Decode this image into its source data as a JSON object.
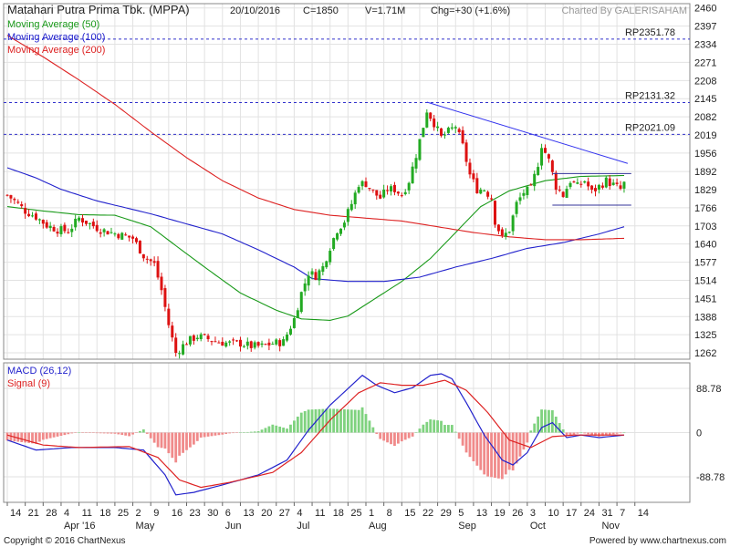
{
  "header": {
    "stock_name": "Matahari Putra Prima Tbk. (MPPA)",
    "date": "20/10/2016",
    "close": "C=1850",
    "volume": "V=1.71M",
    "change": "Chg=+30 (+1.6%)",
    "charted_by": "Charted By GALERISAHAM"
  },
  "footer": {
    "copyright": "Copyright © 2016 ChartNexus",
    "powered_by": "Powered by www.chartnexus.com"
  },
  "colors": {
    "up": "#22aa22",
    "down": "#dd1111",
    "ma50": "#1a9a1a",
    "ma100": "#2222cc",
    "ma200": "#dd2222",
    "macd": "#2222cc",
    "signal": "#dd2222",
    "resistance": "#3333cc",
    "trendline": "#3333ee"
  },
  "chart_data": [
    {
      "type": "candlestick",
      "legend": [
        "Moving Average (50)",
        "Moving Average (100)",
        "Moving Average (200)"
      ],
      "y_ticks": [
        1262,
        1325,
        1388,
        1451,
        1514,
        1577,
        1640,
        1703,
        1766,
        1829,
        1892,
        1956,
        2019,
        2082,
        2145,
        2208,
        2271,
        2334,
        2397,
        2460
      ],
      "ylim": [
        1240,
        2475
      ],
      "x_ticks": [
        "14",
        "21",
        "28",
        "4",
        "11",
        "18",
        "25",
        "2",
        "9",
        "16",
        "23",
        "30",
        "6",
        "13",
        "20",
        "27",
        "4",
        "11",
        "18",
        "25",
        "1",
        "8",
        "15",
        "22",
        "29",
        "5",
        "13",
        "19",
        "26",
        "3",
        "10",
        "17",
        "24",
        "31",
        "7",
        "14"
      ],
      "month_labels": [
        {
          "label": "Apr '16",
          "tick_index": 3
        },
        {
          "label": "May",
          "tick_index": 7
        },
        {
          "label": "Jun",
          "tick_index": 12
        },
        {
          "label": "Jul",
          "tick_index": 16
        },
        {
          "label": "Aug",
          "tick_index": 20
        },
        {
          "label": "Sep",
          "tick_index": 25
        },
        {
          "label": "Oct",
          "tick_index": 29
        },
        {
          "label": "Nov",
          "tick_index": 33
        }
      ],
      "resistance_lines": [
        {
          "label": "RP2351.78",
          "value": 2351.78
        },
        {
          "label": "RP2131.32",
          "value": 2131.32
        },
        {
          "label": "RP2021.09",
          "value": 2021.09
        }
      ],
      "trendline": {
        "from": {
          "bar": 117,
          "value": 2133
        },
        "to": {
          "bar": 173,
          "value": 1920
        }
      },
      "channel": {
        "from_bar": 152,
        "to_bar": 174,
        "upper": 1885,
        "lower": 1775
      },
      "keypoints": [
        [
          0,
          1810
        ],
        [
          2,
          1790
        ],
        [
          5,
          1755
        ],
        [
          8,
          1735
        ],
        [
          11,
          1705
        ],
        [
          14,
          1690
        ],
        [
          17,
          1685
        ],
        [
          20,
          1730
        ],
        [
          23,
          1710
        ],
        [
          26,
          1690
        ],
        [
          29,
          1680
        ],
        [
          32,
          1670
        ],
        [
          35,
          1660
        ],
        [
          38,
          1600
        ],
        [
          41,
          1570
        ],
        [
          43,
          1480
        ],
        [
          45,
          1360
        ],
        [
          47,
          1262
        ],
        [
          50,
          1300
        ],
        [
          53,
          1320
        ],
        [
          56,
          1310
        ],
        [
          59,
          1300
        ],
        [
          62,
          1295
        ],
        [
          65,
          1295
        ],
        [
          68,
          1285
        ],
        [
          71,
          1285
        ],
        [
          74,
          1295
        ],
        [
          77,
          1300
        ],
        [
          80,
          1380
        ],
        [
          82,
          1470
        ],
        [
          84,
          1540
        ],
        [
          86,
          1530
        ],
        [
          88,
          1560
        ],
        [
          90,
          1630
        ],
        [
          92,
          1690
        ],
        [
          94,
          1720
        ],
        [
          96,
          1780
        ],
        [
          98,
          1850
        ],
        [
          100,
          1850
        ],
        [
          102,
          1820
        ],
        [
          104,
          1800
        ],
        [
          106,
          1830
        ],
        [
          108,
          1830
        ],
        [
          110,
          1810
        ],
        [
          112,
          1860
        ],
        [
          114,
          1950
        ],
        [
          116,
          2050
        ],
        [
          117,
          2105
        ],
        [
          119,
          2060
        ],
        [
          121,
          2010
        ],
        [
          123,
          2030
        ],
        [
          125,
          2050
        ],
        [
          127,
          1980
        ],
        [
          129,
          1880
        ],
        [
          131,
          1830
        ],
        [
          133,
          1830
        ],
        [
          135,
          1800
        ],
        [
          136,
          1720
        ],
        [
          138,
          1660
        ],
        [
          140,
          1690
        ],
        [
          142,
          1780
        ],
        [
          144,
          1820
        ],
        [
          146,
          1830
        ],
        [
          148,
          1920
        ],
        [
          149,
          1985
        ],
        [
          151,
          1930
        ],
        [
          153,
          1840
        ],
        [
          155,
          1810
        ],
        [
          157,
          1860
        ],
        [
          159,
          1840
        ],
        [
          161,
          1860
        ],
        [
          163,
          1820
        ],
        [
          165,
          1840
        ],
        [
          167,
          1860
        ],
        [
          169,
          1845
        ],
        [
          171,
          1830
        ],
        [
          172,
          1850
        ]
      ],
      "ma_keypoints": {
        "ma50": [
          [
            0,
            1770
          ],
          [
            10,
            1755
          ],
          [
            20,
            1742
          ],
          [
            30,
            1740
          ],
          [
            40,
            1700
          ],
          [
            48,
            1625
          ],
          [
            55,
            1560
          ],
          [
            65,
            1470
          ],
          [
            75,
            1410
          ],
          [
            82,
            1380
          ],
          [
            90,
            1375
          ],
          [
            95,
            1390
          ],
          [
            100,
            1430
          ],
          [
            110,
            1510
          ],
          [
            118,
            1590
          ],
          [
            125,
            1680
          ],
          [
            132,
            1770
          ],
          [
            140,
            1825
          ],
          [
            150,
            1860
          ],
          [
            160,
            1875
          ],
          [
            172,
            1878
          ]
        ],
        "ma100": [
          [
            0,
            1905
          ],
          [
            8,
            1870
          ],
          [
            15,
            1830
          ],
          [
            25,
            1790
          ],
          [
            40,
            1745
          ],
          [
            50,
            1710
          ],
          [
            60,
            1675
          ],
          [
            70,
            1620
          ],
          [
            80,
            1560
          ],
          [
            85,
            1520
          ],
          [
            95,
            1510
          ],
          [
            105,
            1510
          ],
          [
            115,
            1525
          ],
          [
            125,
            1560
          ],
          [
            135,
            1590
          ],
          [
            145,
            1625
          ],
          [
            155,
            1645
          ],
          [
            165,
            1675
          ],
          [
            172,
            1700
          ]
        ],
        "ma200": [
          [
            0,
            2365
          ],
          [
            10,
            2290
          ],
          [
            20,
            2210
          ],
          [
            30,
            2125
          ],
          [
            40,
            2030
          ],
          [
            50,
            1940
          ],
          [
            60,
            1860
          ],
          [
            70,
            1800
          ],
          [
            80,
            1760
          ],
          [
            90,
            1740
          ],
          [
            100,
            1730
          ],
          [
            110,
            1720
          ],
          [
            120,
            1700
          ],
          [
            130,
            1680
          ],
          [
            140,
            1665
          ],
          [
            150,
            1655
          ],
          [
            160,
            1655
          ],
          [
            172,
            1660
          ]
        ]
      }
    },
    {
      "type": "macd",
      "legend": [
        "MACD (26,12)",
        "Signal (9)"
      ],
      "y_ticks": [
        88.78,
        0,
        -88.78
      ],
      "ylim": [
        -140,
        140
      ],
      "macd_keypoints": [
        [
          0,
          -15
        ],
        [
          8,
          -35
        ],
        [
          18,
          -30
        ],
        [
          30,
          -30
        ],
        [
          38,
          -35
        ],
        [
          44,
          -85
        ],
        [
          47,
          -125
        ],
        [
          52,
          -120
        ],
        [
          60,
          -105
        ],
        [
          70,
          -85
        ],
        [
          78,
          -55
        ],
        [
          84,
          5
        ],
        [
          90,
          55
        ],
        [
          96,
          95
        ],
        [
          99,
          115
        ],
        [
          103,
          95
        ],
        [
          108,
          80
        ],
        [
          113,
          90
        ],
        [
          118,
          115
        ],
        [
          121,
          118
        ],
        [
          124,
          108
        ],
        [
          128,
          60
        ],
        [
          133,
          -5
        ],
        [
          138,
          -55
        ],
        [
          141,
          -65
        ],
        [
          145,
          -40
        ],
        [
          149,
          10
        ],
        [
          152,
          20
        ],
        [
          156,
          -10
        ],
        [
          160,
          -5
        ],
        [
          165,
          -10
        ],
        [
          172,
          -5
        ]
      ],
      "signal_keypoints": [
        [
          0,
          -5
        ],
        [
          10,
          -25
        ],
        [
          20,
          -30
        ],
        [
          34,
          -28
        ],
        [
          42,
          -50
        ],
        [
          48,
          -95
        ],
        [
          54,
          -110
        ],
        [
          62,
          -100
        ],
        [
          74,
          -80
        ],
        [
          82,
          -40
        ],
        [
          90,
          25
        ],
        [
          98,
          80
        ],
        [
          104,
          100
        ],
        [
          110,
          95
        ],
        [
          116,
          95
        ],
        [
          122,
          105
        ],
        [
          128,
          85
        ],
        [
          134,
          40
        ],
        [
          140,
          -15
        ],
        [
          146,
          -30
        ],
        [
          152,
          -8
        ],
        [
          158,
          -5
        ],
        [
          166,
          -5
        ],
        [
          172,
          -5
        ]
      ]
    }
  ]
}
